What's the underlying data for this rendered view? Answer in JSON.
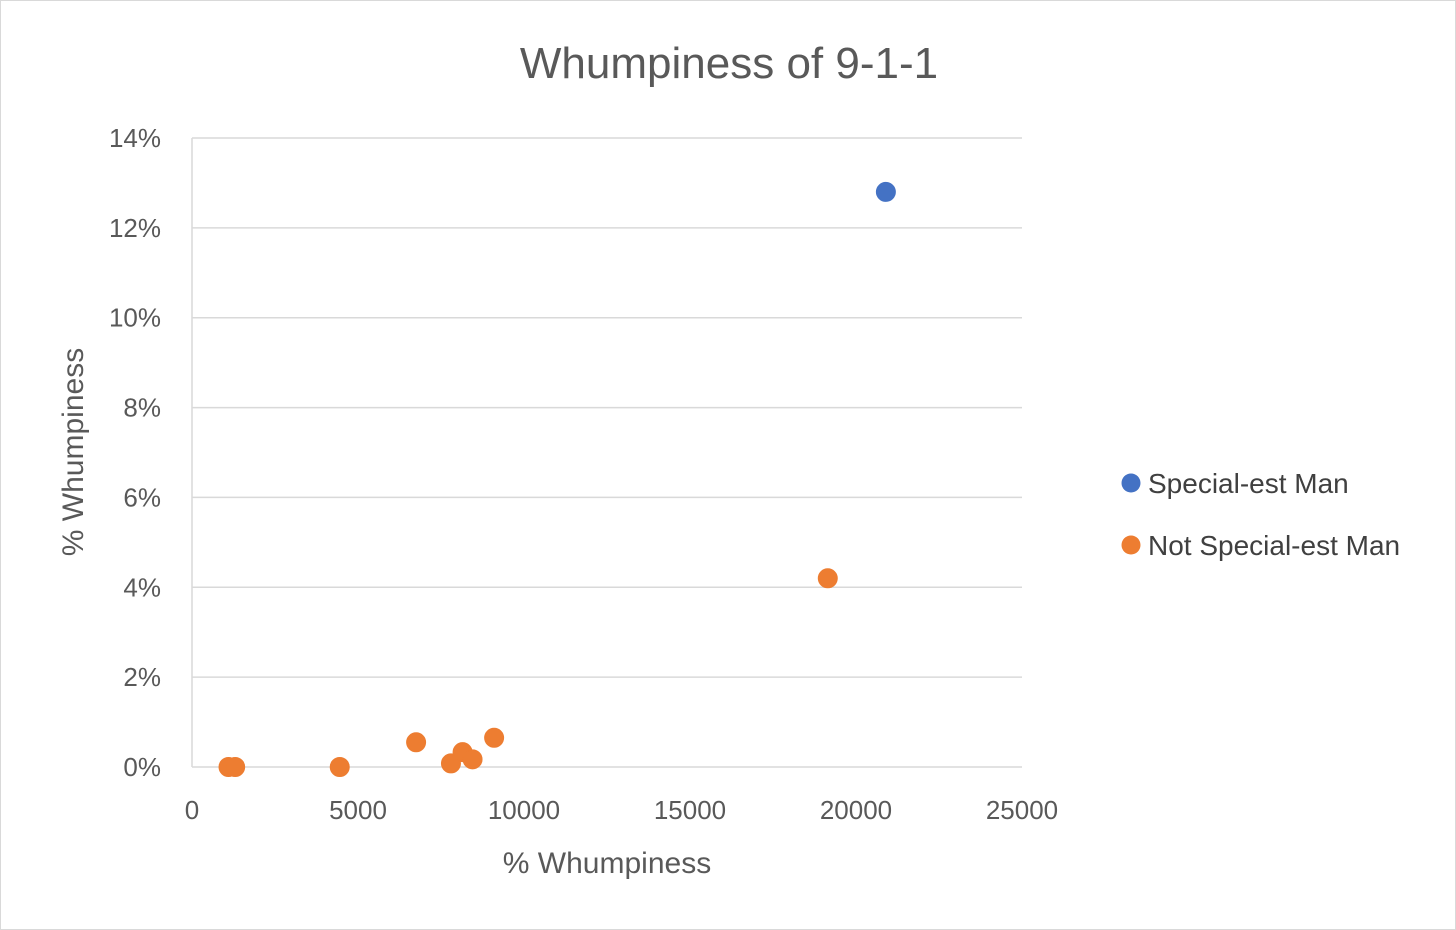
{
  "chart_data": {
    "type": "scatter",
    "title": "Whumpiness of 9-1-1",
    "xlabel": "% Whumpiness",
    "ylabel": "% Whumpiness",
    "xlim": [
      0,
      25000
    ],
    "ylim": [
      0,
      0.14
    ],
    "x_ticks": [
      "0",
      "5000",
      "10000",
      "15000",
      "20000",
      "25000"
    ],
    "y_ticks": [
      "0%",
      "2%",
      "4%",
      "6%",
      "8%",
      "10%",
      "12%",
      "14%"
    ],
    "x_tick_values": [
      0,
      5000,
      10000,
      15000,
      20000,
      25000
    ],
    "y_tick_values": [
      0,
      0.02,
      0.04,
      0.06,
      0.08,
      0.1,
      0.12,
      0.14
    ],
    "grid": "horizontal",
    "legend_position": "right",
    "series": [
      {
        "name": "Special-est Man",
        "color": "#4472c4",
        "points": [
          {
            "x": 20900,
            "y": 0.128
          }
        ]
      },
      {
        "name": "Not Special-est Man",
        "color": "#ed7d31",
        "points": [
          {
            "x": 1100,
            "y": 0.0
          },
          {
            "x": 1300,
            "y": 0.0
          },
          {
            "x": 4450,
            "y": 0.0
          },
          {
            "x": 6750,
            "y": 0.0055
          },
          {
            "x": 7800,
            "y": 0.0008
          },
          {
            "x": 8150,
            "y": 0.0033
          },
          {
            "x": 8450,
            "y": 0.0017
          },
          {
            "x": 9100,
            "y": 0.0065
          },
          {
            "x": 19150,
            "y": 0.042
          }
        ]
      }
    ]
  }
}
